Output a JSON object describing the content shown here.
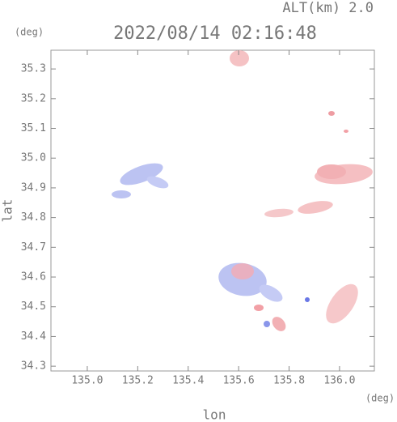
{
  "chart_data": {
    "type": "map",
    "title": "2022/08/14 02:16:48",
    "subtitle": "ALT(km) 2.0",
    "y_unit": "(deg)",
    "x_unit": "(deg)",
    "ylabel": "lat",
    "xlabel": "lon",
    "xlim": [
      134.856,
      136.138
    ],
    "ylim": [
      34.284,
      35.363
    ],
    "xticks": [
      {
        "value": 135.0,
        "label": "135.0"
      },
      135.2,
      135.4,
      135.6,
      135.8,
      {
        "value": 136.0,
        "label": "136.0"
      }
    ],
    "yticks": [
      34.3,
      34.4,
      34.5,
      34.6,
      34.7,
      34.8,
      34.9,
      {
        "value": 35.0,
        "label": "35.0"
      },
      35.1,
      35.2,
      35.3
    ]
  }
}
